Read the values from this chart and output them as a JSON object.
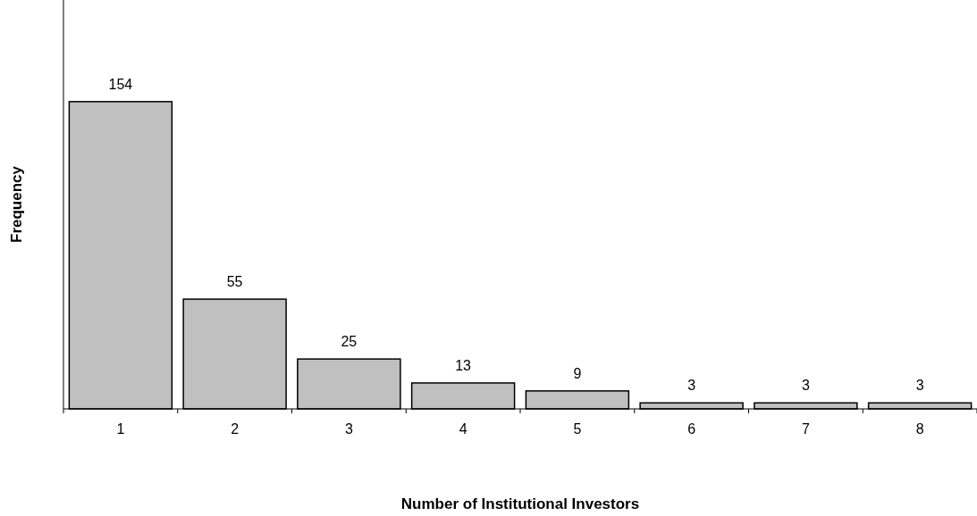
{
  "chart_data": {
    "type": "bar",
    "xlabel": "Number of Institutional Investors",
    "ylabel": "Frequency",
    "categories": [
      "1",
      "2",
      "3",
      "4",
      "5",
      "6",
      "7",
      "8"
    ],
    "values": [
      154,
      55,
      25,
      13,
      9,
      3,
      3,
      3
    ],
    "color": "#c0c0c0",
    "data_labels": true
  }
}
